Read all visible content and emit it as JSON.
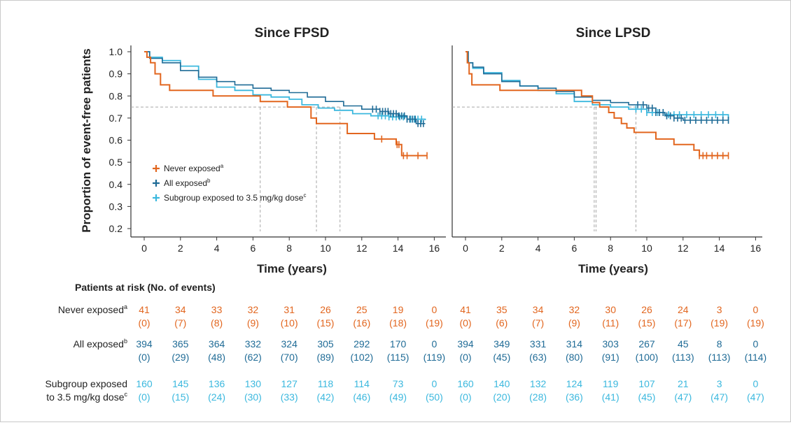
{
  "colors": {
    "never": "#e2661f",
    "all": "#1f6b96",
    "sub": "#3bb8de",
    "ref": "#a6a6a6",
    "axis": "#333333"
  },
  "figure": {
    "ylabel": "Proportion of event-free patients",
    "xlabel": "Time (years)",
    "risk_title": "Patients at risk (No. of events)",
    "legend": [
      "Never exposed",
      "All exposed",
      "Subgroup exposed to 3.5 mg/kg dose"
    ],
    "legend_sup": [
      "a",
      "b",
      "c"
    ]
  },
  "chart_data": [
    {
      "type": "line",
      "title": "Since FPSD",
      "xlabel": "Time (years)",
      "ylabel": "Proportion of event-free patients",
      "xlim": [
        0,
        16
      ],
      "ylim": [
        0.2,
        1.0
      ],
      "xticks": [
        "0",
        "2",
        "4",
        "6",
        "8",
        "10",
        "12",
        "14",
        "16"
      ],
      "yticks": [
        "0.2",
        "0.3",
        "0.4",
        "0.5",
        "0.6",
        "0.7",
        "0.8",
        "0.9",
        "1.0"
      ],
      "reference_y": 0.75,
      "median_markers_x": [
        6.4,
        9.5,
        10.8
      ],
      "series": [
        {
          "name": "Never exposed",
          "key": "never",
          "x": [
            0,
            0.15,
            0.35,
            0.6,
            0.9,
            1.4,
            3.8,
            6.4,
            7.9,
            9.2,
            9.5,
            11.2,
            12.7,
            13.9,
            14.2,
            15.6
          ],
          "y": [
            1.0,
            0.975,
            0.95,
            0.9,
            0.85,
            0.825,
            0.8,
            0.775,
            0.75,
            0.7,
            0.675,
            0.63,
            0.605,
            0.58,
            0.53,
            0.53
          ],
          "censor_x": [
            13.1,
            13.95,
            14.05,
            14.3,
            14.5,
            15.1,
            15.6
          ]
        },
        {
          "name": "All exposed",
          "key": "all",
          "x": [
            0,
            0.3,
            1.0,
            2.0,
            3.0,
            4.0,
            5.0,
            6.0,
            7.0,
            8.0,
            9.0,
            10.0,
            11.0,
            12.0,
            13.0,
            13.5,
            14.0,
            14.5,
            15.0,
            15.5
          ],
          "y": [
            1.0,
            0.97,
            0.95,
            0.915,
            0.885,
            0.865,
            0.85,
            0.835,
            0.825,
            0.815,
            0.795,
            0.775,
            0.755,
            0.74,
            0.73,
            0.72,
            0.71,
            0.695,
            0.675,
            0.675
          ],
          "censor_x": [
            12.6,
            12.8,
            13.0,
            13.15,
            13.3,
            13.45,
            13.6,
            13.75,
            13.9,
            14.05,
            14.2,
            14.35,
            14.5,
            14.65,
            14.8,
            14.95,
            15.1,
            15.25,
            15.4
          ]
        },
        {
          "name": "Subgroup exposed to 3.5 mg/kg dose",
          "key": "sub",
          "x": [
            0,
            0.3,
            1.0,
            2.0,
            3.0,
            4.0,
            5.0,
            6.0,
            7.0,
            8.0,
            8.7,
            9.6,
            10.5,
            11.5,
            12.5,
            13.5,
            14.5,
            15.5
          ],
          "y": [
            1.0,
            0.975,
            0.96,
            0.935,
            0.875,
            0.84,
            0.825,
            0.805,
            0.795,
            0.785,
            0.76,
            0.745,
            0.735,
            0.72,
            0.71,
            0.705,
            0.695,
            0.69
          ],
          "censor_x": [
            12.9,
            13.1,
            13.3,
            13.5,
            13.7,
            13.9,
            14.1,
            14.3,
            14.5,
            14.7,
            14.9,
            15.1,
            15.3
          ]
        }
      ],
      "at_risk": {
        "never": [
          [
            "41",
            "(0)"
          ],
          [
            "34",
            "(7)"
          ],
          [
            "33",
            "(8)"
          ],
          [
            "32",
            "(9)"
          ],
          [
            "31",
            "(10)"
          ],
          [
            "26",
            "(15)"
          ],
          [
            "25",
            "(16)"
          ],
          [
            "19",
            "(18)"
          ],
          [
            "0",
            "(19)"
          ]
        ],
        "all": [
          [
            "394",
            "(0)"
          ],
          [
            "365",
            "(29)"
          ],
          [
            "364",
            "(48)"
          ],
          [
            "332",
            "(62)"
          ],
          [
            "324",
            "(70)"
          ],
          [
            "305",
            "(89)"
          ],
          [
            "292",
            "(102)"
          ],
          [
            "170",
            "(115)"
          ],
          [
            "0",
            "(119)"
          ]
        ],
        "sub": [
          [
            "160",
            "(0)"
          ],
          [
            "145",
            "(15)"
          ],
          [
            "136",
            "(24)"
          ],
          [
            "130",
            "(30)"
          ],
          [
            "127",
            "(33)"
          ],
          [
            "118",
            "(42)"
          ],
          [
            "114",
            "(46)"
          ],
          [
            "73",
            "(49)"
          ],
          [
            "0",
            "(50)"
          ]
        ]
      }
    },
    {
      "type": "line",
      "title": "Since LPSD",
      "xlabel": "Time (years)",
      "xlim": [
        0,
        16
      ],
      "ylim": [
        0.2,
        1.0
      ],
      "xticks": [
        "0",
        "2",
        "4",
        "6",
        "8",
        "10",
        "12",
        "14",
        "16"
      ],
      "reference_y": 0.75,
      "median_markers_x": [
        7.1,
        7.2,
        9.4
      ],
      "series": [
        {
          "name": "Never exposed",
          "key": "never",
          "x": [
            0,
            0.1,
            0.2,
            0.35,
            1.9,
            6.4,
            7.0,
            7.4,
            7.9,
            8.2,
            8.6,
            8.9,
            9.3,
            10.5,
            11.5,
            12.6,
            12.9,
            14.5
          ],
          "y": [
            1.0,
            0.95,
            0.9,
            0.85,
            0.825,
            0.8,
            0.77,
            0.75,
            0.725,
            0.7,
            0.675,
            0.655,
            0.635,
            0.605,
            0.58,
            0.555,
            0.53,
            0.53
          ],
          "censor_x": [
            12.9,
            13.1,
            13.3,
            13.6,
            13.9,
            14.2,
            14.5
          ]
        },
        {
          "name": "All exposed",
          "key": "all",
          "x": [
            0,
            0.15,
            0.4,
            1.0,
            2.0,
            3.0,
            4.0,
            5.0,
            6.0,
            7.0,
            8.0,
            9.0,
            10.0,
            10.5,
            11.0,
            11.5,
            12.0,
            14.5
          ],
          "y": [
            1.0,
            0.95,
            0.93,
            0.9,
            0.865,
            0.845,
            0.835,
            0.82,
            0.795,
            0.78,
            0.77,
            0.76,
            0.745,
            0.725,
            0.71,
            0.7,
            0.69,
            0.69
          ],
          "censor_x": [
            9.5,
            9.8,
            10.1,
            10.3,
            10.5,
            10.7,
            10.9,
            11.1,
            11.3,
            11.5,
            11.7,
            11.9,
            12.1,
            12.4,
            12.7,
            13.0,
            13.3,
            13.6,
            13.9,
            14.2,
            14.5
          ]
        },
        {
          "name": "Subgroup exposed to 3.5 mg/kg dose",
          "key": "sub",
          "x": [
            0,
            0.15,
            0.4,
            1.0,
            2.0,
            3.0,
            4.0,
            5.0,
            6.0,
            7.0,
            8.0,
            9.0,
            10.0,
            11.0,
            14.5
          ],
          "y": [
            1.0,
            0.95,
            0.925,
            0.905,
            0.87,
            0.845,
            0.825,
            0.81,
            0.775,
            0.76,
            0.75,
            0.74,
            0.725,
            0.715,
            0.69
          ],
          "censor_x": [
            9.4,
            9.7,
            10.0,
            10.3,
            10.6,
            10.9,
            11.2,
            11.5,
            11.8,
            12.2,
            12.6,
            13.0,
            13.4,
            13.8,
            14.2
          ]
        }
      ],
      "at_risk": {
        "never": [
          [
            "41",
            "(0)"
          ],
          [
            "35",
            "(6)"
          ],
          [
            "34",
            "(7)"
          ],
          [
            "32",
            "(9)"
          ],
          [
            "30",
            "(11)"
          ],
          [
            "26",
            "(15)"
          ],
          [
            "24",
            "(17)"
          ],
          [
            "3",
            "(19)"
          ],
          [
            "0",
            "(19)"
          ]
        ],
        "all": [
          [
            "394",
            "(0)"
          ],
          [
            "349",
            "(45)"
          ],
          [
            "331",
            "(63)"
          ],
          [
            "314",
            "(80)"
          ],
          [
            "303",
            "(91)"
          ],
          [
            "267",
            "(100)"
          ],
          [
            "45",
            "(113)"
          ],
          [
            "8",
            "(113)"
          ],
          [
            "0",
            "(114)"
          ]
        ],
        "sub": [
          [
            "160",
            "(0)"
          ],
          [
            "140",
            "(20)"
          ],
          [
            "132",
            "(28)"
          ],
          [
            "124",
            "(36)"
          ],
          [
            "119",
            "(41)"
          ],
          [
            "107",
            "(45)"
          ],
          [
            "21",
            "(47)"
          ],
          [
            "3",
            "(47)"
          ],
          [
            "0",
            "(47)"
          ]
        ]
      }
    }
  ],
  "risk_rows": [
    {
      "key": "never",
      "label_lines": [
        "Never exposed"
      ],
      "sup": "a"
    },
    {
      "key": "all",
      "label_lines": [
        "All exposed"
      ],
      "sup": "b"
    },
    {
      "key": "sub",
      "label_lines": [
        "Subgroup exposed",
        "to 3.5 mg/kg dose"
      ],
      "sup": "c"
    }
  ]
}
